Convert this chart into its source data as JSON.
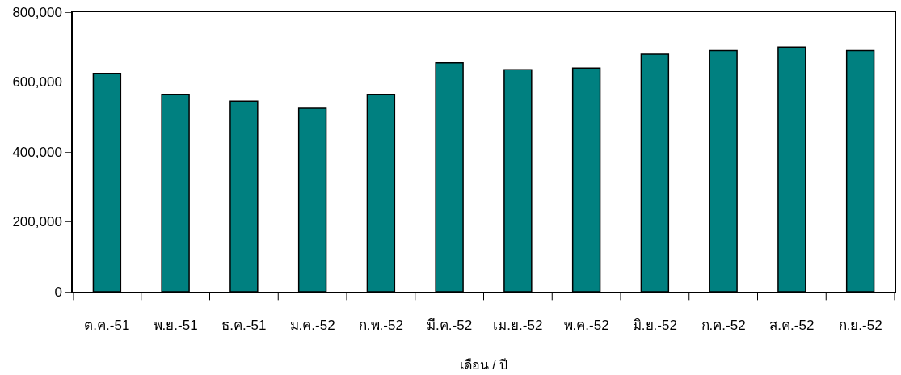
{
  "chart_data": {
    "type": "bar",
    "xlabel": "เดือน / ปี",
    "categories": [
      "ต.ค.-51",
      "พ.ย.-51",
      "ธ.ค.-51",
      "ม.ค.-52",
      "ก.พ.-52",
      "มี.ค.-52",
      "เม.ย.-52",
      "พ.ค.-52",
      "มิ.ย.-52",
      "ก.ค.-52",
      "ส.ค.-52",
      "ก.ย.-52"
    ],
    "values": [
      625000,
      565000,
      545000,
      525000,
      565000,
      655000,
      635000,
      640000,
      680000,
      690000,
      700000,
      690000
    ],
    "color": "#008080",
    "ylim": [
      0,
      800000
    ],
    "yticks": [
      {
        "value": 0,
        "label": "0"
      },
      {
        "value": 200000,
        "label": "200,000"
      },
      {
        "value": 400000,
        "label": "400,000"
      },
      {
        "value": 600000,
        "label": "600,000"
      },
      {
        "value": 800000,
        "label": "800,000"
      }
    ]
  }
}
